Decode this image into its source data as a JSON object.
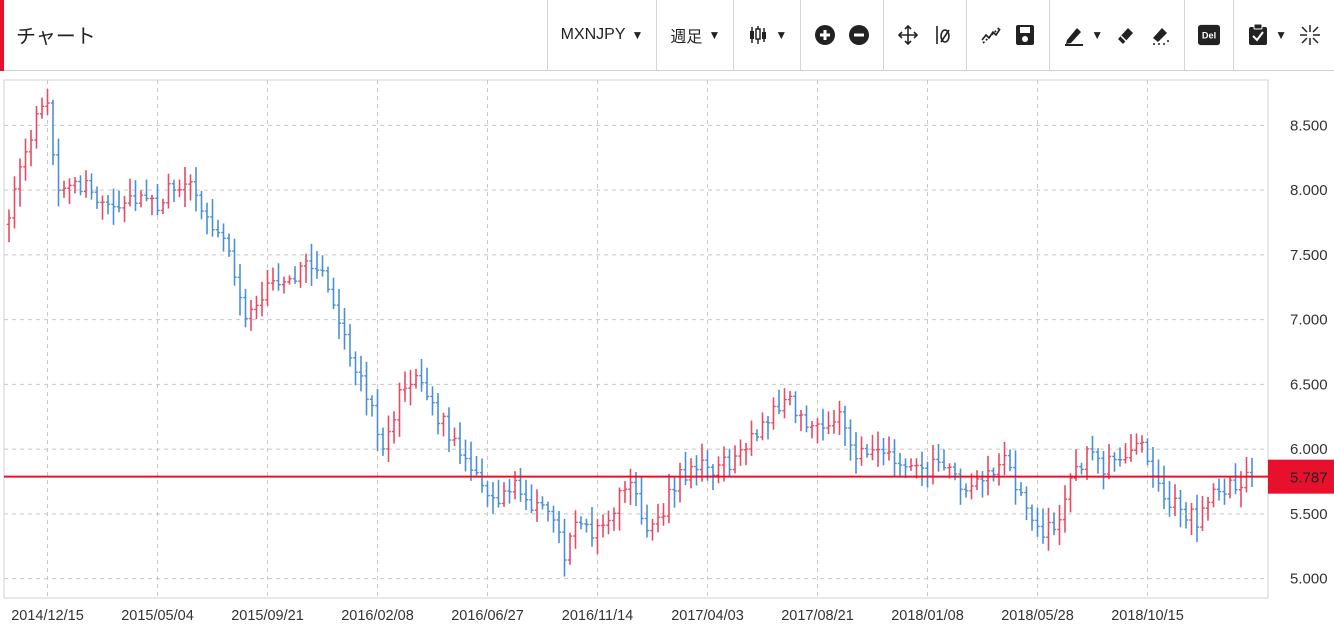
{
  "header": {
    "title": "チャート",
    "symbol_label": "MXNJPY",
    "period_label": "週足"
  },
  "toolbar_icons": [
    "candlestick-type-icon",
    "zoom-in-icon",
    "zoom-out-icon",
    "pan-icon",
    "vertical-line-icon",
    "trendline-icon",
    "save-icon",
    "pen-icon",
    "eraser-icon",
    "clear-icon",
    "delete-icon",
    "template-icon",
    "fullscreen-icon"
  ],
  "colors": {
    "accent": "#e8112d",
    "up": "#e84a63",
    "down": "#4a8fd6",
    "price_line": "#e8112d",
    "grid": "#c8c8c8"
  },
  "chart_data": {
    "type": "ohlc",
    "ylim": [
      4.85,
      8.85
    ],
    "y_ticks": [
      "8.500",
      "8.000",
      "7.500",
      "7.000",
      "6.500",
      "6.000",
      "5.500",
      "5.000"
    ],
    "y_tick_values": [
      8.5,
      8.0,
      7.5,
      7.0,
      6.5,
      6.0,
      5.5,
      5.0
    ],
    "x_tick_labels": [
      "2014/12/15",
      "2015/05/04",
      "2015/09/21",
      "2016/02/08",
      "2016/06/27",
      "2016/11/14",
      "2017/04/03",
      "2017/08/21",
      "2018/01/08",
      "2018/05/28",
      "2018/10/15"
    ],
    "x_tick_index": [
      7,
      27,
      47,
      67,
      87,
      107,
      127,
      147,
      167,
      187,
      207
    ],
    "grid": true,
    "last_price": 5.787,
    "last_price_label": "5.787",
    "anchors": [
      [
        0,
        7.85
      ],
      [
        3,
        8.25
      ],
      [
        5,
        8.55
      ],
      [
        7,
        8.65
      ],
      [
        9,
        8.0
      ],
      [
        11,
        8.1
      ],
      [
        16,
        7.95
      ],
      [
        20,
        7.9
      ],
      [
        23,
        7.95
      ],
      [
        27,
        7.85
      ],
      [
        30,
        8.05
      ],
      [
        33,
        8.0
      ],
      [
        37,
        7.75
      ],
      [
        40,
        7.55
      ],
      [
        43,
        7.0
      ],
      [
        47,
        7.25
      ],
      [
        52,
        7.35
      ],
      [
        55,
        7.45
      ],
      [
        58,
        7.25
      ],
      [
        61,
        6.9
      ],
      [
        63,
        6.6
      ],
      [
        66,
        6.3
      ],
      [
        68,
        6.05
      ],
      [
        71,
        6.4
      ],
      [
        74,
        6.5
      ],
      [
        77,
        6.35
      ],
      [
        80,
        6.1
      ],
      [
        83,
        5.95
      ],
      [
        86,
        5.75
      ],
      [
        89,
        5.55
      ],
      [
        92,
        5.75
      ],
      [
        95,
        5.5
      ],
      [
        98,
        5.55
      ],
      [
        101,
        5.2
      ],
      [
        104,
        5.45
      ],
      [
        107,
        5.35
      ],
      [
        110,
        5.55
      ],
      [
        113,
        5.75
      ],
      [
        116,
        5.4
      ],
      [
        119,
        5.55
      ],
      [
        122,
        5.8
      ],
      [
        125,
        5.85
      ],
      [
        128,
        5.85
      ],
      [
        131,
        5.9
      ],
      [
        134,
        6.0
      ],
      [
        137,
        6.2
      ],
      [
        140,
        6.35
      ],
      [
        142,
        6.4
      ],
      [
        145,
        6.15
      ],
      [
        148,
        6.2
      ],
      [
        151,
        6.3
      ],
      [
        154,
        5.95
      ],
      [
        157,
        5.95
      ],
      [
        160,
        5.95
      ],
      [
        163,
        5.85
      ],
      [
        166,
        5.8
      ],
      [
        169,
        5.9
      ],
      [
        172,
        5.75
      ],
      [
        175,
        5.65
      ],
      [
        178,
        5.85
      ],
      [
        181,
        5.9
      ],
      [
        184,
        5.6
      ],
      [
        187,
        5.4
      ],
      [
        190,
        5.35
      ],
      [
        193,
        5.8
      ],
      [
        196,
        5.95
      ],
      [
        199,
        5.85
      ],
      [
        202,
        5.95
      ],
      [
        205,
        6.05
      ],
      [
        208,
        5.85
      ],
      [
        210,
        5.6
      ],
      [
        213,
        5.55
      ],
      [
        216,
        5.45
      ],
      [
        218,
        5.6
      ],
      [
        221,
        5.7
      ],
      [
        224,
        5.75
      ],
      [
        226,
        5.787
      ]
    ]
  }
}
